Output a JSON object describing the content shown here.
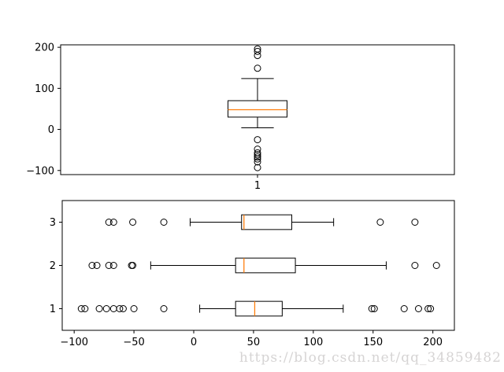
{
  "figure": {
    "background": "#ffffff"
  },
  "watermark": {
    "text": "https://blog.csdn.net/qq_34859482",
    "color": "#d6d4d4"
  },
  "chart_data": [
    {
      "type": "boxplot",
      "orientation": "vertical",
      "title": "",
      "xlabel": "",
      "ylabel": "",
      "grid": false,
      "xtick_labels": [
        "1"
      ],
      "ytick_values": [
        -100,
        0,
        100,
        200
      ],
      "xlim": [
        0.5,
        1.5
      ],
      "ylim": [
        -110,
        206
      ],
      "box_width": 0.15,
      "box_color": "#000000",
      "median_color": "#ff7f0e",
      "series": [
        {
          "position": 1,
          "label": "1",
          "whisker_low": 4,
          "q1": 30,
          "median": 48,
          "q3": 70,
          "whisker_high": 124,
          "outliers": [
            -93,
            -79,
            -72,
            -67,
            -62,
            -57,
            -48,
            -25,
            149,
            180,
            190,
            196
          ]
        }
      ]
    },
    {
      "type": "boxplot",
      "orientation": "horizontal",
      "title": "",
      "xlabel": "",
      "ylabel": "",
      "grid": false,
      "ytick_labels": [
        "1",
        "2",
        "3"
      ],
      "xtick_values": [
        -100,
        -50,
        0,
        50,
        100,
        150,
        200
      ],
      "xlim": [
        -110,
        218
      ],
      "ylim": [
        0.5,
        3.5
      ],
      "box_width": 0.34,
      "box_color": "#000000",
      "median_color": "#ff7f0e",
      "series": [
        {
          "position": 1,
          "label": "1",
          "whisker_low": 5,
          "q1": 35,
          "median": 51,
          "q3": 74,
          "whisker_high": 125,
          "outliers": [
            -94,
            -91,
            -79,
            -73,
            -67,
            -62,
            -59,
            -50,
            -25,
            149,
            151,
            176,
            188,
            196,
            198
          ]
        },
        {
          "position": 2,
          "label": "2",
          "whisker_low": -36,
          "q1": 35,
          "median": 42,
          "q3": 85,
          "whisker_high": 161,
          "outliers": [
            -85,
            -81,
            -71,
            -67,
            -52,
            -51,
            185,
            203
          ]
        },
        {
          "position": 3,
          "label": "3",
          "whisker_low": -3,
          "q1": 40,
          "median": 42,
          "q3": 82,
          "whisker_high": 117,
          "outliers": [
            -71,
            -67,
            -51,
            -25,
            156,
            185
          ]
        }
      ]
    }
  ]
}
